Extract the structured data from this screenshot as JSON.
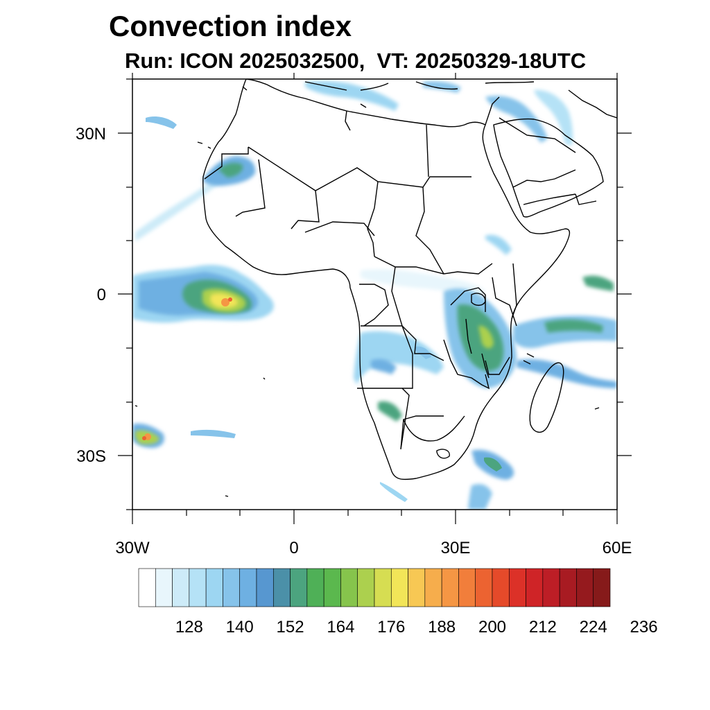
{
  "header": {
    "title": "Convection index",
    "subtitle": "Run: ICON 2025032500,  VT: 20250329-18UTC"
  },
  "map": {
    "projection": "cylindrical-equidistant",
    "lon_range": [
      -30,
      60
    ],
    "lat_range": [
      -40,
      40
    ],
    "x_tick_labels": [
      "30W",
      "0",
      "30E",
      "60E"
    ],
    "y_tick_labels": [
      "30N",
      "0",
      "30S"
    ],
    "coastline_color": "#000000",
    "field": "convection index"
  },
  "colorbar": {
    "labels": [
      "128",
      "140",
      "152",
      "164",
      "176",
      "188",
      "200",
      "212",
      "224",
      "236"
    ],
    "colors": [
      "#ffffff",
      "#e8f6fc",
      "#cdebf8",
      "#b5e2f6",
      "#9dd6f2",
      "#86c3ea",
      "#6eb0e2",
      "#5797d0",
      "#4b90a8",
      "#4ca47f",
      "#4fb057",
      "#5bb84e",
      "#86c44c",
      "#acd04e",
      "#d6dd52",
      "#f2e558",
      "#f7c854",
      "#f6ad4c",
      "#f59644",
      "#f17e3b",
      "#ec6331",
      "#e54a2a",
      "#dc3128",
      "#cf2427",
      "#bd1e26",
      "#a81b22",
      "#951a1e",
      "#861a1a"
    ]
  }
}
